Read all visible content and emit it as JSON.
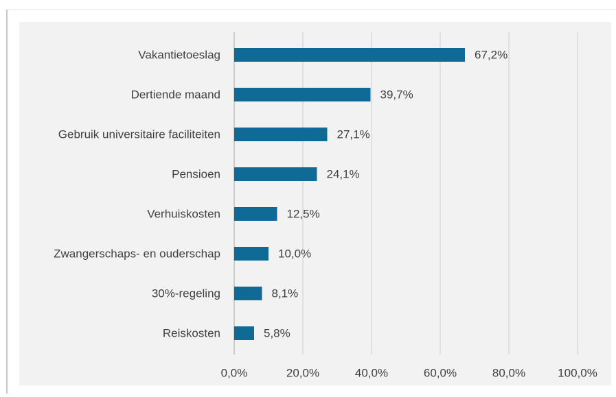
{
  "chart_data": {
    "type": "bar",
    "orientation": "horizontal",
    "categories": [
      "Vakantietoeslag",
      "Dertiende maand",
      "Gebruik universitaire faciliteiten",
      "Pensioen",
      "Verhuiskosten",
      "Zwangerschaps- en ouderschap",
      "30%-regeling",
      "Reiskosten"
    ],
    "values": [
      67.2,
      39.7,
      27.1,
      24.1,
      12.5,
      10.0,
      8.1,
      5.8
    ],
    "value_labels": [
      "67,2%",
      "39,7%",
      "27,1%",
      "24,1%",
      "12,5%",
      "10,0%",
      "8,1%",
      "5,8%"
    ],
    "color": "#0f6a95",
    "xlim": [
      0,
      100
    ],
    "xticks": [
      {
        "value": 0,
        "label": "0,0%"
      },
      {
        "value": 20,
        "label": "20,0%"
      },
      {
        "value": 40,
        "label": "40,0%"
      },
      {
        "value": 60,
        "label": "60,0%"
      },
      {
        "value": 80,
        "label": "80,0%"
      },
      {
        "value": 100,
        "label": "100,0%"
      }
    ],
    "grid": true
  }
}
